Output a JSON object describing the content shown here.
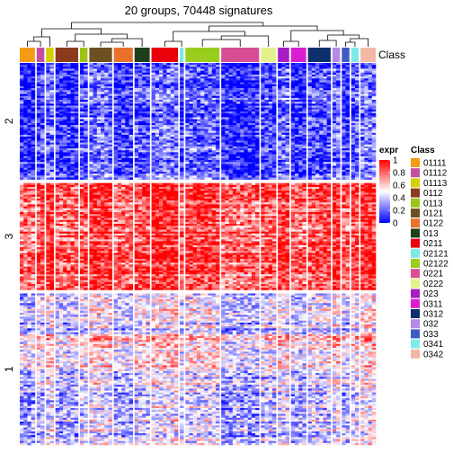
{
  "chart_data": {
    "type": "heatmap",
    "title": "20 groups, 70448 signatures",
    "annotation_label": "Class",
    "row_slices": [
      {
        "label": "2",
        "rows": 60
      },
      {
        "label": "3",
        "rows": 55
      },
      {
        "label": "1",
        "rows": 78
      }
    ],
    "column_groups": [
      {
        "name": "01111",
        "color": "#F39C12",
        "columns": 4
      },
      {
        "name": "01112",
        "color": "#C44FA0",
        "columns": 2
      },
      {
        "name": "01113",
        "color": "#D4CF00",
        "columns": 2
      },
      {
        "name": "0112",
        "color": "#8B3A1E",
        "columns": 6
      },
      {
        "name": "0113",
        "color": "#9BC417",
        "columns": 2
      },
      {
        "name": "0121",
        "color": "#6E4F22",
        "columns": 6
      },
      {
        "name": "0122",
        "color": "#E8722A",
        "columns": 5
      },
      {
        "name": "013",
        "color": "#1F3F1A",
        "columns": 4
      },
      {
        "name": "0211",
        "color": "#E8000B",
        "columns": 7
      },
      {
        "name": "02121",
        "color": "#7DE8E8",
        "columns": 1
      },
      {
        "name": "02122",
        "color": "#9ACD1E",
        "columns": 9
      },
      {
        "name": "0221",
        "color": "#D84E95",
        "columns": 10
      },
      {
        "name": "0222",
        "color": "#E6F08A",
        "columns": 4
      },
      {
        "name": "023",
        "color": "#A81EC2",
        "columns": 3
      },
      {
        "name": "0311",
        "color": "#D91ECF",
        "columns": 4
      },
      {
        "name": "0312",
        "color": "#0D2F6E",
        "columns": 6
      },
      {
        "name": "032",
        "color": "#B58AE6",
        "columns": 2
      },
      {
        "name": "033",
        "color": "#3D5CC2",
        "columns": 2
      },
      {
        "name": "0341",
        "color": "#7FEAEA",
        "columns": 2
      },
      {
        "name": "0342",
        "color": "#F2B8A5",
        "columns": 4
      }
    ],
    "column_splits": [
      4,
      2,
      2,
      6,
      2,
      6,
      5,
      4,
      7,
      1,
      9,
      10,
      4,
      3,
      4,
      6,
      2,
      2,
      2,
      4
    ],
    "color_scale": {
      "title": "expr",
      "stops": [
        {
          "value": 0,
          "color": "#0000FF"
        },
        {
          "value": 0.5,
          "color": "#FFFFFF"
        },
        {
          "value": 1,
          "color": "#FF0000"
        }
      ],
      "ticks": [
        "0",
        "0.2",
        "0.4",
        "0.6",
        "0.8",
        "1"
      ],
      "range": [
        0,
        1
      ]
    },
    "legend_title": "Class"
  }
}
